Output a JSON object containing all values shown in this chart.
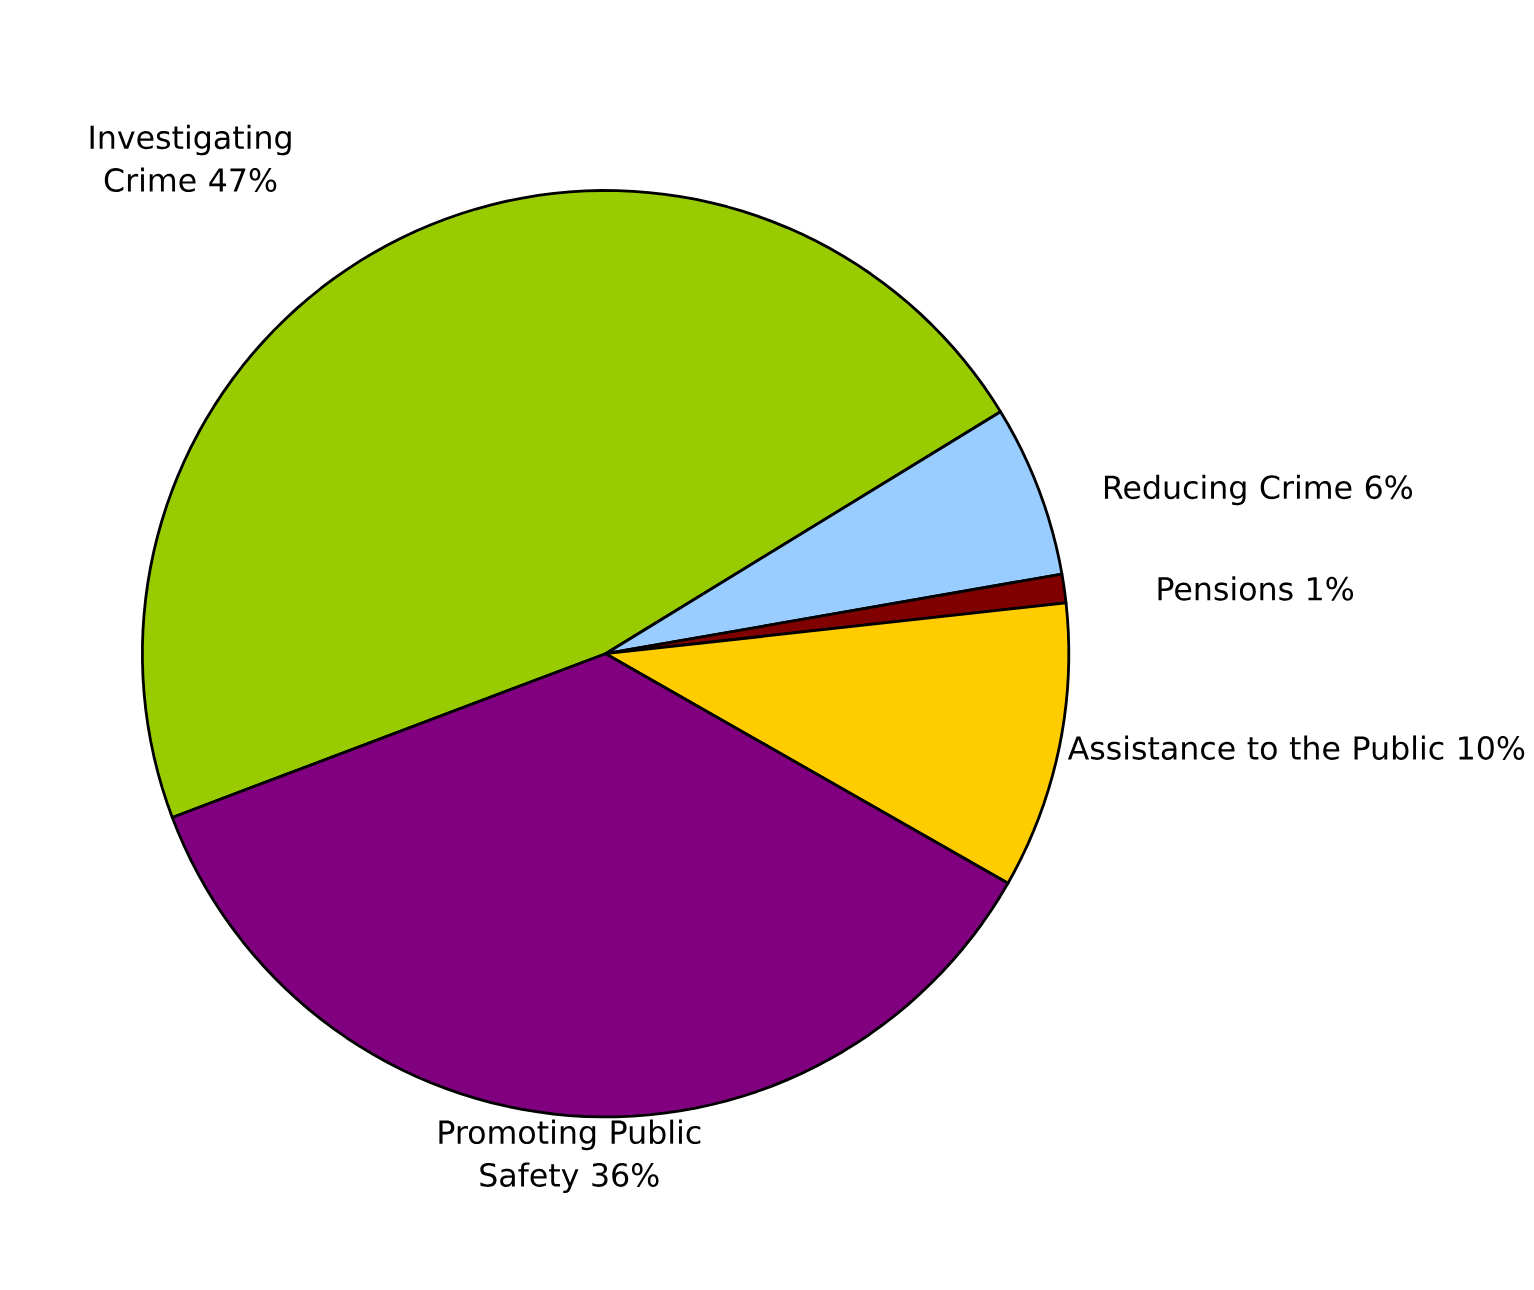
{
  "chart_data": {
    "type": "pie",
    "categories": [
      "Investigating Crime",
      "Reducing Crime",
      "Pensions",
      "Assistance to the Public",
      "Promoting Public Safety"
    ],
    "values": [
      47,
      6,
      1,
      10,
      36
    ],
    "value_labels": [
      "47%",
      "6%",
      "1%",
      "10%",
      "36%"
    ],
    "colors": [
      "#99cc00",
      "#99ccff",
      "#800000",
      "#ffcc00",
      "#800080"
    ]
  }
}
